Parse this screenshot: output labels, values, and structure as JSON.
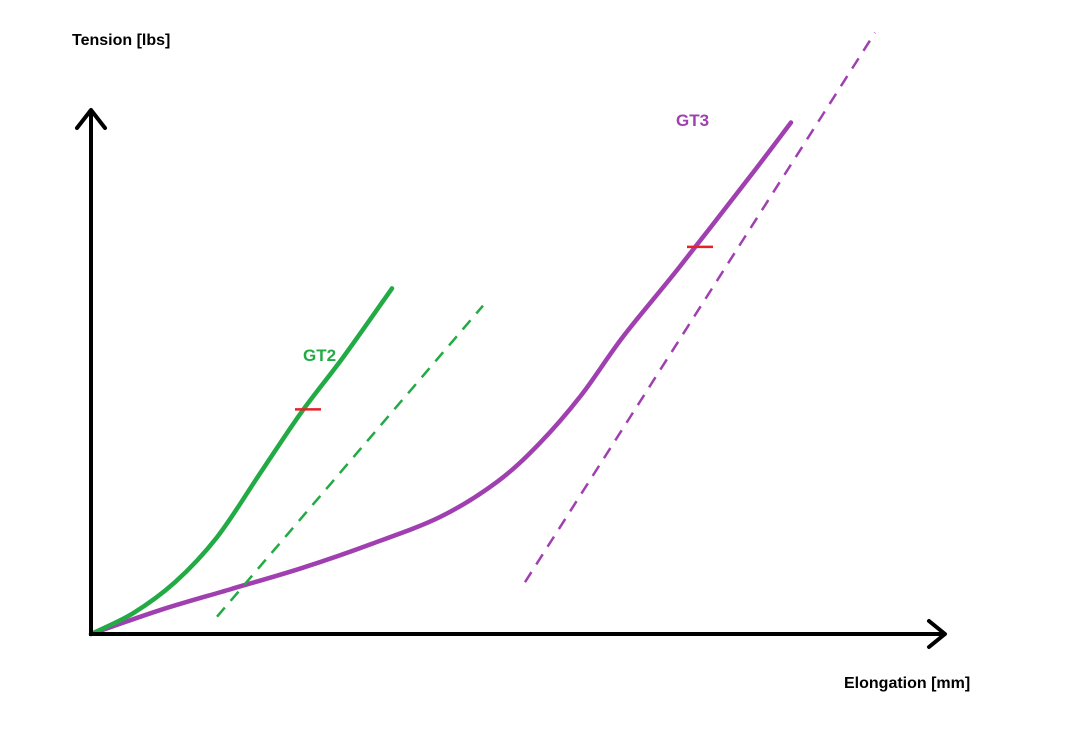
{
  "chart_data": {
    "type": "line",
    "title": "",
    "xlabel": "Elongation [mm]",
    "ylabel": "Tension [lbs]",
    "grid": false,
    "legend": "none",
    "tick_labels": "none",
    "series": [
      {
        "name": "GT2",
        "color": "#22aa44",
        "curve": [
          [
            0,
            0
          ],
          [
            3,
            3
          ],
          [
            6,
            7.5
          ],
          [
            9,
            14
          ],
          [
            12,
            23
          ],
          [
            15,
            32
          ],
          [
            18,
            40
          ],
          [
            21.5,
            50
          ]
        ],
        "tangent": [
          [
            9,
            2.5
          ],
          [
            28,
            47.5
          ]
        ],
        "marker": [
          15.5,
          32.5
        ]
      },
      {
        "name": "GT3",
        "color": "#a040b0",
        "curve": [
          [
            0,
            0
          ],
          [
            5,
            3.5
          ],
          [
            10,
            6.5
          ],
          [
            15,
            9.5
          ],
          [
            20,
            13
          ],
          [
            25,
            17
          ],
          [
            29,
            22
          ],
          [
            32,
            27.5
          ],
          [
            35,
            34.5
          ],
          [
            38,
            43
          ],
          [
            42,
            53
          ],
          [
            47,
            66
          ],
          [
            50,
            74
          ]
        ],
        "tangent": [
          [
            31,
            7.5
          ],
          [
            56,
            87
          ]
        ],
        "marker": [
          43.5,
          56
        ]
      }
    ],
    "xlim": [
      0,
      60
    ],
    "ylim": [
      0,
      80
    ]
  }
}
